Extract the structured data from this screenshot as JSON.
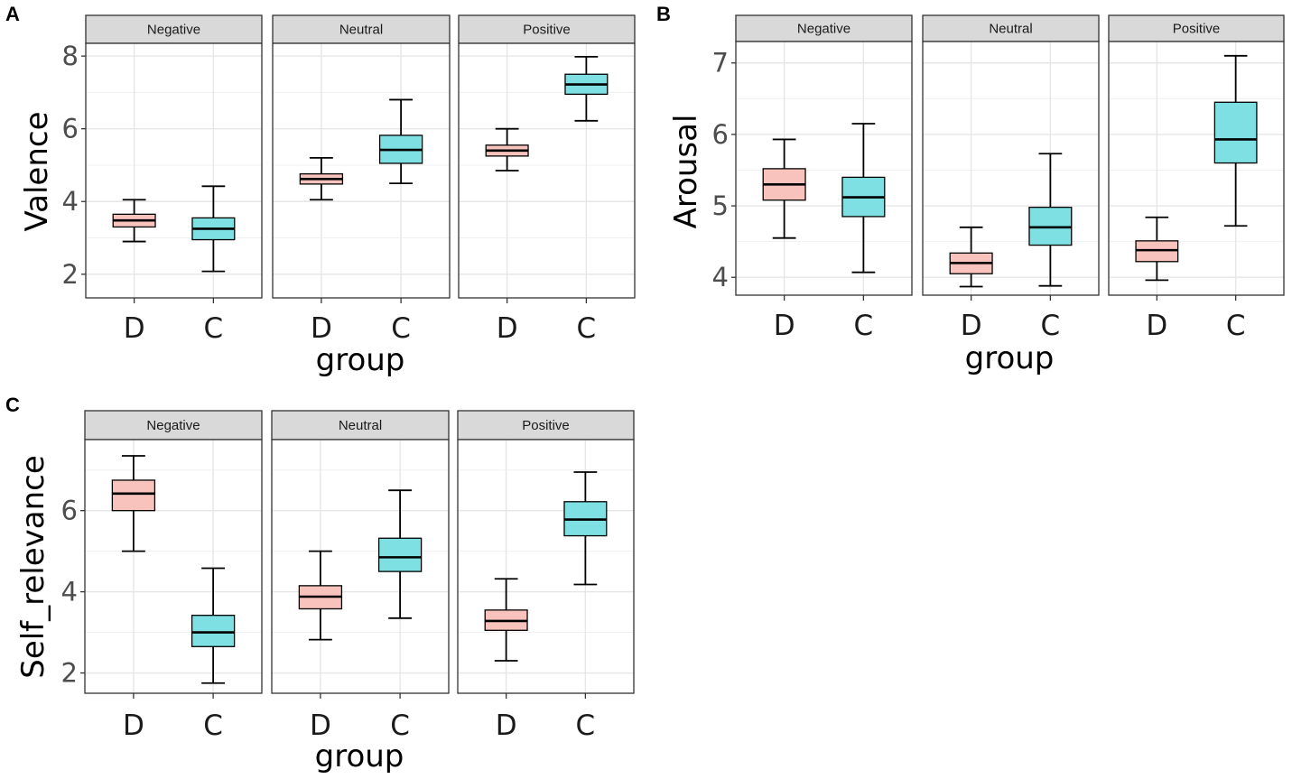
{
  "chart_data": [
    {
      "type": "boxplot",
      "panel_label": "A",
      "ylabel": "Valence",
      "xlabel": "group",
      "ylim": [
        1.35,
        8.35
      ],
      "yticks": [
        2,
        4,
        6,
        8
      ],
      "categories": [
        "D",
        "C"
      ],
      "colors": {
        "D": "#f8c3bd",
        "C": "#7ee0e2"
      },
      "facets": [
        {
          "name": "Negative",
          "boxes": [
            {
              "group": "D",
              "min": 2.9,
              "q1": 3.3,
              "median": 3.48,
              "q3": 3.65,
              "max": 4.05
            },
            {
              "group": "C",
              "min": 2.08,
              "q1": 2.95,
              "median": 3.25,
              "q3": 3.55,
              "max": 4.42
            }
          ]
        },
        {
          "name": "Neutral",
          "boxes": [
            {
              "group": "D",
              "min": 4.05,
              "q1": 4.48,
              "median": 4.62,
              "q3": 4.76,
              "max": 5.2
            },
            {
              "group": "C",
              "min": 4.5,
              "q1": 5.05,
              "median": 5.42,
              "q3": 5.82,
              "max": 6.8
            }
          ]
        },
        {
          "name": "Positive",
          "boxes": [
            {
              "group": "D",
              "min": 4.85,
              "q1": 5.25,
              "median": 5.4,
              "q3": 5.55,
              "max": 6.0
            },
            {
              "group": "C",
              "min": 6.22,
              "q1": 6.95,
              "median": 7.22,
              "q3": 7.5,
              "max": 7.98
            }
          ]
        }
      ]
    },
    {
      "type": "boxplot",
      "panel_label": "B",
      "ylabel": "Arousal",
      "xlabel": "group",
      "ylim": [
        3.75,
        7.3
      ],
      "yticks": [
        4,
        5,
        6,
        7
      ],
      "categories": [
        "D",
        "C"
      ],
      "colors": {
        "D": "#f8c3bd",
        "C": "#7ee0e2"
      },
      "facets": [
        {
          "name": "Negative",
          "boxes": [
            {
              "group": "D",
              "min": 4.55,
              "q1": 5.08,
              "median": 5.3,
              "q3": 5.52,
              "max": 5.93
            },
            {
              "group": "C",
              "min": 4.07,
              "q1": 4.85,
              "median": 5.12,
              "q3": 5.4,
              "max": 6.15
            }
          ]
        },
        {
          "name": "Neutral",
          "boxes": [
            {
              "group": "D",
              "min": 3.87,
              "q1": 4.05,
              "median": 4.2,
              "q3": 4.34,
              "max": 4.7
            },
            {
              "group": "C",
              "min": 3.88,
              "q1": 4.45,
              "median": 4.7,
              "q3": 4.98,
              "max": 5.73
            }
          ]
        },
        {
          "name": "Positive",
          "boxes": [
            {
              "group": "D",
              "min": 3.96,
              "q1": 4.22,
              "median": 4.38,
              "q3": 4.51,
              "max": 4.84
            },
            {
              "group": "C",
              "min": 4.72,
              "q1": 5.6,
              "median": 5.93,
              "q3": 6.45,
              "max": 7.1
            }
          ]
        }
      ]
    },
    {
      "type": "boxplot",
      "panel_label": "C",
      "ylabel": "Self_relevance",
      "xlabel": "group",
      "ylim": [
        1.5,
        7.75
      ],
      "yticks": [
        2,
        4,
        6
      ],
      "categories": [
        "D",
        "C"
      ],
      "colors": {
        "D": "#f8c3bd",
        "C": "#7ee0e2"
      },
      "facets": [
        {
          "name": "Negative",
          "boxes": [
            {
              "group": "D",
              "min": 5.0,
              "q1": 6.0,
              "median": 6.42,
              "q3": 6.75,
              "max": 7.35
            },
            {
              "group": "C",
              "min": 1.75,
              "q1": 2.65,
              "median": 3.0,
              "q3": 3.42,
              "max": 4.58
            }
          ]
        },
        {
          "name": "Neutral",
          "boxes": [
            {
              "group": "D",
              "min": 2.82,
              "q1": 3.58,
              "median": 3.88,
              "q3": 4.15,
              "max": 5.0
            },
            {
              "group": "C",
              "min": 3.35,
              "q1": 4.5,
              "median": 4.85,
              "q3": 5.32,
              "max": 6.5
            }
          ]
        },
        {
          "name": "Positive",
          "boxes": [
            {
              "group": "D",
              "min": 2.3,
              "q1": 3.05,
              "median": 3.28,
              "q3": 3.55,
              "max": 4.32
            },
            {
              "group": "C",
              "min": 4.18,
              "q1": 5.38,
              "median": 5.78,
              "q3": 6.22,
              "max": 6.95
            }
          ]
        }
      ]
    }
  ]
}
